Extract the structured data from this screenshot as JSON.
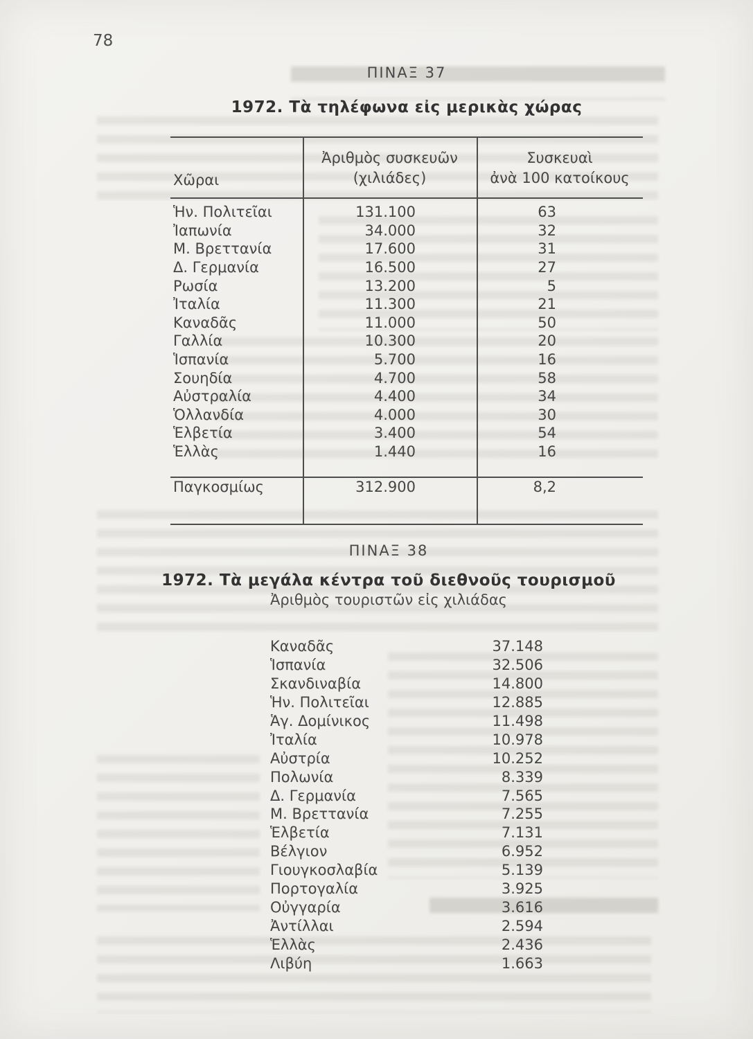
{
  "page": {
    "number": "78"
  },
  "table37": {
    "caption": "ΠΙΝΑΞ 37",
    "title": "1972. Τὰ τηλέφωνα εἰς μερικὰς χώρας",
    "header": {
      "col1": "Χῶραι",
      "col2_line1": "Ἀριθμὸς συσκευῶν",
      "col2_line2": "(χιλιάδες)",
      "col3_line1": "Συσκευαὶ",
      "col3_line2": "ἀνὰ 100 κατοίκους"
    },
    "rows": [
      {
        "country": "Ἡν. Πολιτεῖαι",
        "devices": "131.100",
        "per_100": "63"
      },
      {
        "country": "Ἰαπωνία",
        "devices": "34.000",
        "per_100": "32"
      },
      {
        "country": "Μ. Βρεττανία",
        "devices": "17.600",
        "per_100": "31"
      },
      {
        "country": "Δ. Γερμανία",
        "devices": "16.500",
        "per_100": "27"
      },
      {
        "country": "Ρωσία",
        "devices": "13.200",
        "per_100": "5"
      },
      {
        "country": "Ἰταλία",
        "devices": "11.300",
        "per_100": "21"
      },
      {
        "country": "Καναδᾶς",
        "devices": "11.000",
        "per_100": "50"
      },
      {
        "country": "Γαλλία",
        "devices": "10.300",
        "per_100": "20"
      },
      {
        "country": "Ἱσπανία",
        "devices": "5.700",
        "per_100": "16"
      },
      {
        "country": "Σουηδία",
        "devices": "4.700",
        "per_100": "58"
      },
      {
        "country": "Αὐστραλία",
        "devices": "4.400",
        "per_100": "34"
      },
      {
        "country": "Ὁλλανδία",
        "devices": "4.000",
        "per_100": "30"
      },
      {
        "country": "Ἑλβετία",
        "devices": "3.400",
        "per_100": "54"
      },
      {
        "country": "Ἑλλὰς",
        "devices": "1.440",
        "per_100": "16"
      }
    ],
    "total_row": {
      "country": "Παγκοσμίως",
      "devices": "312.900",
      "per_100": "8,2"
    }
  },
  "table38": {
    "caption": "ΠΙΝΑΞ 38",
    "title": "1972. Τὰ μεγάλα κέντρα τοῦ διεθνοῦς τουρισμοῦ",
    "subtitle": "Ἀριθμὸς τουριστῶν εἰς χιλιάδας",
    "rows": [
      {
        "country": "Καναδᾶς",
        "tourists": "37.148"
      },
      {
        "country": "Ἱσπανία",
        "tourists": "32.506"
      },
      {
        "country": "Σκανδιναβία",
        "tourists": "14.800"
      },
      {
        "country": "Ἡν. Πολιτεῖαι",
        "tourists": "12.885"
      },
      {
        "country": "Ἁγ. Δομίνικος",
        "tourists": "11.498"
      },
      {
        "country": "Ἰταλία",
        "tourists": "10.978"
      },
      {
        "country": "Αὐστρία",
        "tourists": "10.252"
      },
      {
        "country": "Πολωνία",
        "tourists": "8.339"
      },
      {
        "country": "Δ. Γερμανία",
        "tourists": "7.565"
      },
      {
        "country": "Μ. Βρεττανία",
        "tourists": "7.255"
      },
      {
        "country": "Ἑλβετία",
        "tourists": "7.131"
      },
      {
        "country": "Βέλγιον",
        "tourists": "6.952"
      },
      {
        "country": "Γιουγκοσλαβία",
        "tourists": "5.139"
      },
      {
        "country": "Πορτογαλία",
        "tourists": "3.925"
      },
      {
        "country": "Οὐγγαρία",
        "tourists": "3.616"
      },
      {
        "country": "Ἀντίλλαι",
        "tourists": "2.594"
      },
      {
        "country": "Ἑλλὰς",
        "tourists": "2.436"
      },
      {
        "country": "Λιβύη",
        "tourists": "1.663"
      }
    ]
  }
}
